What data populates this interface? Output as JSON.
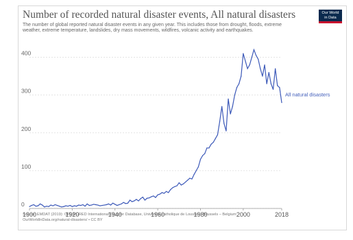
{
  "title": "Number of recorded natural disaster events, All natural disasters",
  "subtitle": "The number of global reported natural disaster events in any given year. This includes those from drought, floods, extreme weather, extreme temperature, landslides, dry mass movements, wildfires, volcanic activity and earthquakes.",
  "logo": {
    "line1": "Our World",
    "line2": "in Data",
    "bg_color": "#0b2a4e",
    "accent_color": "#c8102e"
  },
  "source": {
    "line1": "Source: EMDAT (2019): OFDA/CRED International Disaster Database, Université catholique de Louvain – Brussels – Belgium",
    "line2": "OurWorldInData.org/natural-disasters/ • CC BY"
  },
  "chart_data": {
    "type": "line",
    "title": "Number of recorded natural disaster events, All natural disasters",
    "xlim": [
      1900,
      2018
    ],
    "ylim": [
      0,
      430
    ],
    "x_ticks": [
      1900,
      1920,
      1940,
      1960,
      1980,
      2000,
      2018
    ],
    "y_ticks": [
      0,
      100,
      200,
      300,
      400
    ],
    "grid": true,
    "series": [
      {
        "name": "All natural disasters",
        "color": "#3b58b8",
        "x": [
          1900,
          1901,
          1902,
          1903,
          1904,
          1905,
          1906,
          1907,
          1908,
          1909,
          1910,
          1911,
          1912,
          1913,
          1914,
          1915,
          1916,
          1917,
          1918,
          1919,
          1920,
          1921,
          1922,
          1923,
          1924,
          1925,
          1926,
          1927,
          1928,
          1929,
          1930,
          1931,
          1932,
          1933,
          1934,
          1935,
          1936,
          1937,
          1938,
          1939,
          1940,
          1941,
          1942,
          1943,
          1944,
          1945,
          1946,
          1947,
          1948,
          1949,
          1950,
          1951,
          1952,
          1953,
          1954,
          1955,
          1956,
          1957,
          1958,
          1959,
          1960,
          1961,
          1962,
          1963,
          1964,
          1965,
          1966,
          1967,
          1968,
          1969,
          1970,
          1971,
          1972,
          1973,
          1974,
          1975,
          1976,
          1977,
          1978,
          1979,
          1980,
          1981,
          1982,
          1983,
          1984,
          1985,
          1986,
          1987,
          1988,
          1989,
          1990,
          1991,
          1992,
          1993,
          1994,
          1995,
          1996,
          1997,
          1998,
          1999,
          2000,
          2001,
          2002,
          2003,
          2004,
          2005,
          2006,
          2007,
          2008,
          2009,
          2010,
          2011,
          2012,
          2013,
          2014,
          2015,
          2016,
          2017,
          2018
        ],
        "values": [
          5,
          8,
          10,
          6,
          7,
          12,
          9,
          4,
          6,
          5,
          9,
          7,
          10,
          8,
          6,
          4,
          5,
          7,
          6,
          8,
          5,
          7,
          6,
          9,
          8,
          10,
          6,
          12,
          8,
          9,
          11,
          10,
          9,
          7,
          8,
          9,
          10,
          12,
          9,
          14,
          11,
          8,
          10,
          12,
          16,
          13,
          14,
          22,
          18,
          20,
          24,
          20,
          26,
          30,
          22,
          27,
          28,
          31,
          33,
          29,
          36,
          38,
          42,
          40,
          45,
          42,
          50,
          55,
          58,
          60,
          68,
          62,
          65,
          70,
          75,
          80,
          78,
          90,
          100,
          110,
          130,
          140,
          145,
          160,
          160,
          170,
          175,
          185,
          195,
          230,
          270,
          225,
          205,
          290,
          250,
          270,
          300,
          320,
          330,
          350,
          410,
          390,
          370,
          380,
          400,
          420,
          405,
          395,
          370,
          350,
          380,
          330,
          360,
          330,
          315,
          370,
          325,
          320,
          280
        ]
      }
    ]
  }
}
